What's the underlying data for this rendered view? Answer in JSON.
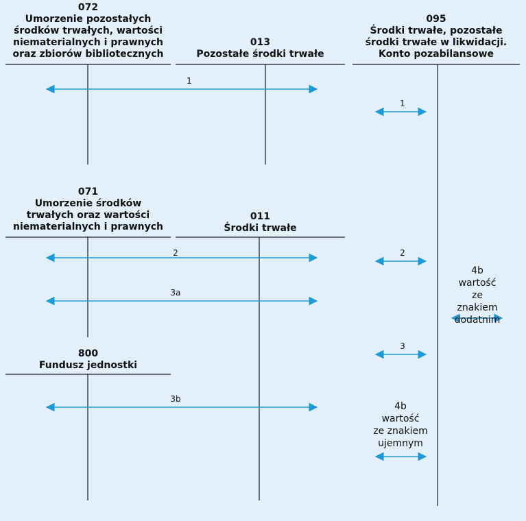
{
  "colors": {
    "background": "#e3f0fb",
    "arrow": "#1b9ad8",
    "line": "#1a1a1a"
  },
  "accounts": {
    "a072": {
      "number": "072",
      "name": "Umorzenie pozostałych\nśrodków trwałych, wartości\nniematerialnych i prawnych\noraz zbiorów bibliotecznych"
    },
    "a013": {
      "number": "013",
      "name": "Pozostałe środki trwałe"
    },
    "a095": {
      "number": "095",
      "name": "Środki trwałe, pozostałe\nśrodki trwałe w likwidacji.\nKonto pozabilansowe"
    },
    "a071": {
      "number": "071",
      "name": "Umorzenie  środków\ntrwałych oraz wartości\nniematerialnych i prawnych"
    },
    "a011": {
      "number": "011",
      "name": "Środki trwałe"
    },
    "a800": {
      "number": "800",
      "name": "Fundusz jednostki"
    }
  },
  "flows": {
    "f1_main": "1",
    "f1_off": "1",
    "f2_main": "2",
    "f2_off": "2",
    "f3a": "3a",
    "f3_off": "3",
    "f3b": "3b"
  },
  "notes": {
    "n4b_pos": "4b\nwartość\nze znakiem\ndodatnim",
    "n4b_neg": "4b\nwartość\nze znakiem\nujemnym"
  }
}
